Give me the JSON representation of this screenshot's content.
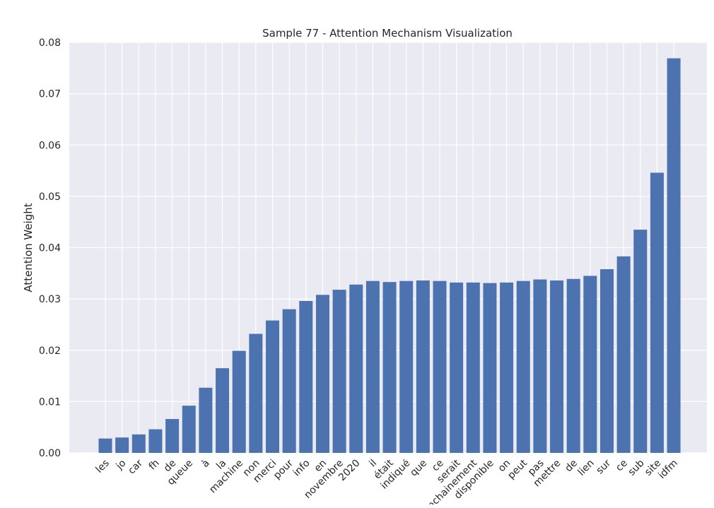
{
  "chart_data": {
    "type": "bar",
    "title": "Sample 77 - Attention Mechanism Visualization",
    "xlabel": "",
    "ylabel": "Attention Weight",
    "ylim": [
      0,
      0.08
    ],
    "yticks": [
      "0.00",
      "0.01",
      "0.02",
      "0.03",
      "0.04",
      "0.05",
      "0.06",
      "0.07",
      "0.08"
    ],
    "grid": true,
    "bar_color": "#4c72b0",
    "background_color": "#eaeaf2",
    "grid_color": "#ffffff",
    "categories": [
      "les",
      "jo",
      "car",
      "fh",
      "de",
      "queue",
      "à",
      "la",
      "machine",
      "non",
      "merci",
      "pour",
      "info",
      "en",
      "novembre",
      "2020",
      "il",
      "était",
      "indiqué",
      "que",
      "ce",
      "serait",
      "enchainement",
      "disponible",
      "on",
      "peut",
      "pas",
      "mettre",
      "de",
      "lien",
      "sur",
      "ce",
      "sub",
      "site",
      "idfm"
    ],
    "values": [
      0.0028,
      0.003,
      0.0036,
      0.0046,
      0.0066,
      0.0092,
      0.0127,
      0.0165,
      0.0199,
      0.0232,
      0.0258,
      0.028,
      0.0296,
      0.0308,
      0.0318,
      0.0328,
      0.0335,
      0.0333,
      0.0335,
      0.0336,
      0.0335,
      0.0332,
      0.0332,
      0.0331,
      0.0332,
      0.0335,
      0.0338,
      0.0336,
      0.0339,
      0.0345,
      0.0358,
      0.0383,
      0.0435,
      0.0546,
      0.0769
    ]
  }
}
